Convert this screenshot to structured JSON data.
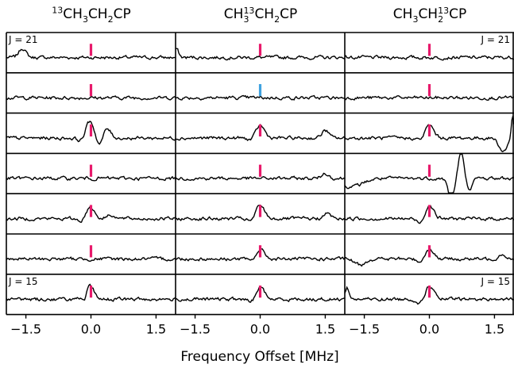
{
  "chart_data": {
    "type": "line",
    "xlabel": "Frequency Offset [MHz]",
    "xlim": [
      -1.95,
      1.95
    ],
    "xticks": [
      -1.5,
      0.0,
      1.5
    ],
    "xtick_labels": [
      "−1.5",
      "0.0",
      "1.5"
    ],
    "columns": [
      {
        "pre_sup": "13",
        "parts": [
          [
            "CH",
            "",
            "3"
          ],
          [
            "CH",
            "",
            "2"
          ],
          [
            "CP",
            "",
            ""
          ]
        ]
      },
      {
        "pre_sup": "",
        "parts": [
          [
            "CH",
            "13",
            "3"
          ],
          [
            "CH",
            "",
            "2"
          ],
          [
            "CP",
            "",
            ""
          ]
        ]
      },
      {
        "pre_sup": "",
        "parts": [
          [
            "CH",
            "",
            "3"
          ],
          [
            "CH",
            "13",
            "2"
          ],
          [
            "CP",
            "",
            ""
          ]
        ]
      }
    ],
    "row_labels": {
      "top": "J = 21",
      "bottom": "J = 15"
    },
    "rows": [
      [
        {
          "marker": "#e8196b",
          "peaks": [
            {
              "x": -1.58,
              "a": 0.55,
              "w": 0.08
            }
          ]
        },
        {
          "marker": "#e8196b",
          "peaks": [
            {
              "x": -1.93,
              "a": 0.5,
              "w": 0.05
            }
          ]
        },
        {
          "marker": "#e8196b",
          "peaks": []
        }
      ],
      [
        {
          "marker": "#e8196b",
          "peaks": []
        },
        {
          "marker": "#3fa2e0",
          "peaks": []
        },
        {
          "marker": "#e8196b",
          "peaks": []
        }
      ],
      [
        {
          "marker": "#e8196b",
          "peaks": [
            {
              "x": -0.02,
              "a": 1.0,
              "w": 0.1
            },
            {
              "x": 0.2,
              "a": -0.55,
              "w": 0.08
            },
            {
              "x": 0.36,
              "a": 0.6,
              "w": 0.09
            },
            {
              "x": -0.22,
              "a": -0.2,
              "w": 0.08
            }
          ]
        },
        {
          "marker": "#e8196b",
          "peaks": [
            {
              "x": 0.0,
              "a": 0.75,
              "w": 0.1
            },
            {
              "x": 1.5,
              "a": 0.45,
              "w": 0.08
            },
            {
              "x": -0.2,
              "a": -0.15,
              "w": 0.08
            }
          ]
        },
        {
          "marker": "#e8196b",
          "peaks": [
            {
              "x": 0.0,
              "a": 0.75,
              "w": 0.1
            },
            {
              "x": -0.2,
              "a": -0.15,
              "w": 0.08
            },
            {
              "x": 1.7,
              "a": -0.8,
              "w": 0.09
            },
            {
              "x": 1.92,
              "a": 1.4,
              "w": 0.03
            }
          ]
        }
      ],
      [
        {
          "marker": "#e8196b",
          "peaks": []
        },
        {
          "marker": "#e8196b",
          "peaks": [
            {
              "x": 1.5,
              "a": 0.3,
              "w": 0.08
            }
          ]
        },
        {
          "marker": "#e8196b",
          "peaks": [
            {
              "x": -1.8,
              "a": -0.5,
              "w": 0.25
            },
            {
              "x": 0.5,
              "a": -1.2,
              "w": 0.07
            },
            {
              "x": 0.73,
              "a": 1.6,
              "w": 0.06
            },
            {
              "x": 0.92,
              "a": -0.6,
              "w": 0.07
            }
          ]
        }
      ],
      [
        {
          "marker": "#e8196b",
          "peaks": [
            {
              "x": -0.02,
              "a": 0.7,
              "w": 0.1
            },
            {
              "x": -0.2,
              "a": -0.2,
              "w": 0.08
            },
            {
              "x": 0.45,
              "a": 0.25,
              "w": 0.08
            }
          ]
        },
        {
          "marker": "#e8196b",
          "peaks": [
            {
              "x": 0.0,
              "a": 0.8,
              "w": 0.1
            },
            {
              "x": -0.2,
              "a": -0.2,
              "w": 0.08
            },
            {
              "x": 1.55,
              "a": 0.3,
              "w": 0.08
            }
          ]
        },
        {
          "marker": "#e8196b",
          "peaks": [
            {
              "x": 0.0,
              "a": 0.8,
              "w": 0.1
            },
            {
              "x": -0.2,
              "a": -0.3,
              "w": 0.08
            }
          ]
        }
      ],
      [
        {
          "marker": "#e8196b",
          "peaks": []
        },
        {
          "marker": "#e8196b",
          "peaks": [
            {
              "x": 0.0,
              "a": 0.55,
              "w": 0.1
            },
            {
              "x": -0.2,
              "a": -0.15,
              "w": 0.08
            }
          ]
        },
        {
          "marker": "#e8196b",
          "peaks": [
            {
              "x": 0.0,
              "a": 0.6,
              "w": 0.1
            },
            {
              "x": -0.2,
              "a": -0.2,
              "w": 0.08
            },
            {
              "x": -1.6,
              "a": -0.35,
              "w": 0.12
            },
            {
              "x": 1.68,
              "a": 0.3,
              "w": 0.08
            }
          ]
        }
      ],
      [
        {
          "marker": "#e8196b",
          "peaks": [
            {
              "x": -0.03,
              "a": 0.8,
              "w": 0.1
            },
            {
              "x": -0.15,
              "a": -0.5,
              "w": 0.05
            }
          ]
        },
        {
          "marker": "#e8196b",
          "peaks": [
            {
              "x": 0.0,
              "a": 0.7,
              "w": 0.1
            },
            {
              "x": -0.2,
              "a": -0.2,
              "w": 0.08
            }
          ]
        },
        {
          "marker": "#e8196b",
          "peaks": [
            {
              "x": 0.0,
              "a": 0.8,
              "w": 0.1
            },
            {
              "x": -0.2,
              "a": -0.3,
              "w": 0.08
            },
            {
              "x": -1.9,
              "a": 0.7,
              "w": 0.05
            }
          ]
        }
      ]
    ]
  }
}
